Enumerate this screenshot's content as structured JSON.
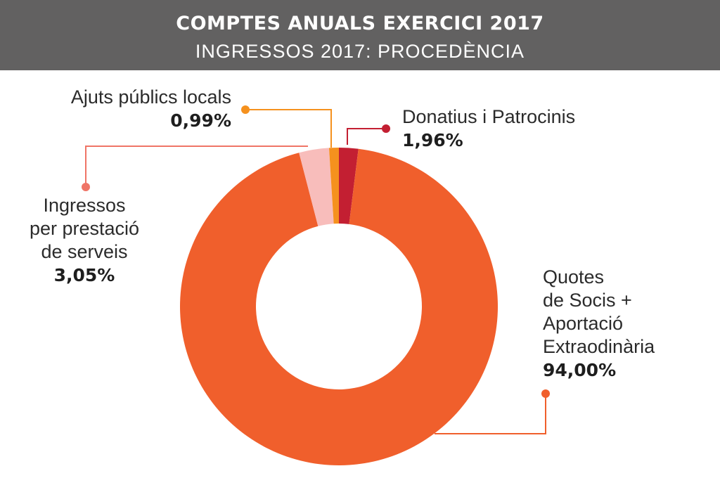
{
  "header": {
    "title": "COMPTES ANUALS EXERCICI 2017",
    "subtitle": "INGRESSOS 2017: PROCEDÈNCIA"
  },
  "chart_data": {
    "type": "pie",
    "style": "donut",
    "title": "COMPTES ANUALS EXERCICI 2017",
    "subtitle": "INGRESSOS 2017: PROCEDÈNCIA",
    "categories": [
      "Donatius i Patrocinis",
      "Quotes de Socis + Aportació Extraodinària",
      "Ingressos per prestació de serveis",
      "Ajuts públics locals"
    ],
    "values": [
      1.96,
      94.0,
      3.05,
      0.99
    ],
    "value_labels": [
      "1,96%",
      "94,00%",
      "3,05%",
      "0,99%"
    ],
    "colors": [
      "#c31f32",
      "#f05f2c",
      "#f8bdbb",
      "#f5911e"
    ],
    "legend": "callout-labels"
  },
  "labels": {
    "donatius": {
      "lines": [
        "Donatius i Patrocinis"
      ],
      "pct": "1,96%"
    },
    "quotes": {
      "lines": [
        "Quotes",
        "de Socis +",
        "Aportació",
        "Extraodinària"
      ],
      "pct": "94,00%"
    },
    "ingressos": {
      "lines": [
        "Ingressos",
        "per prestació",
        "de serveis"
      ],
      "pct": "3,05%"
    },
    "ajuts": {
      "lines": [
        "Ajuts públics locals"
      ],
      "pct": "0,99%"
    }
  }
}
